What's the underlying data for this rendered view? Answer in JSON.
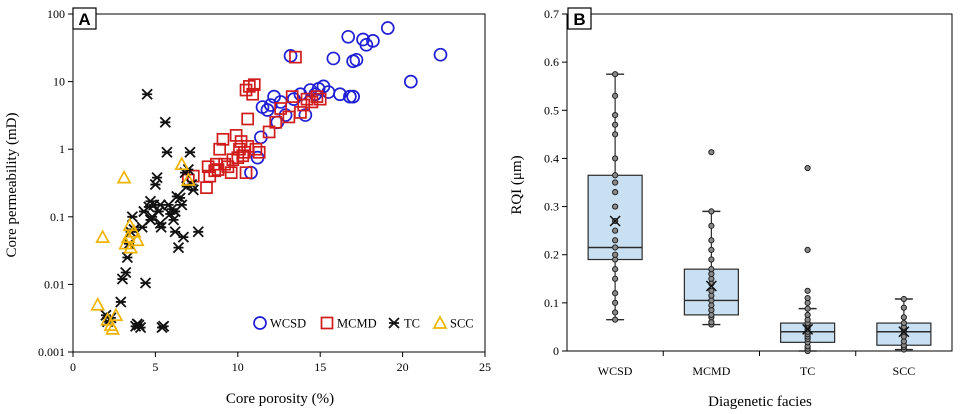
{
  "colors": {
    "WCSD": "#1f1fd6",
    "MCMD": "#d11c1c",
    "TC": "#111111",
    "SCC": "#f0b400",
    "box_fill": "#c9e0f2",
    "box_stroke": "#2b2b2b",
    "point_fill": "#8a8a8a"
  },
  "chart_data": [
    {
      "panel": "A",
      "type": "scatter",
      "title": "",
      "xlabel": "Core porosity (%)",
      "ylabel": "Core permeability (mD)",
      "xlim": [
        0,
        25
      ],
      "ylim": [
        0.001,
        100
      ],
      "yscale": "log",
      "x_ticks": [
        0,
        5,
        10,
        15,
        20,
        25
      ],
      "x_tick_labels": [
        "0",
        "5",
        "10",
        "15",
        "20",
        "25"
      ],
      "y_ticks": [
        0.001,
        0.01,
        0.1,
        1,
        10,
        100
      ],
      "y_tick_labels": [
        "0.001",
        "0.01",
        "0.1",
        "1",
        "10",
        "100"
      ],
      "legend_position": "bottom-right",
      "series": [
        {
          "name": "WCSD",
          "marker": "circle",
          "points": [
            [
              10.8,
              0.45
            ],
            [
              11.2,
              0.75
            ],
            [
              11.4,
              1.5
            ],
            [
              11.5,
              4.2
            ],
            [
              12.0,
              4.5
            ],
            [
              12.2,
              6.0
            ],
            [
              12.6,
              5.0
            ],
            [
              12.9,
              3.2
            ],
            [
              13.2,
              24
            ],
            [
              13.8,
              6.5
            ],
            [
              14.1,
              3.2
            ],
            [
              14.4,
              7.5
            ],
            [
              14.9,
              7.8
            ],
            [
              15.2,
              8.5
            ],
            [
              15.5,
              7.0
            ],
            [
              15.8,
              22
            ],
            [
              16.2,
              6.5
            ],
            [
              16.8,
              6.0
            ],
            [
              17.0,
              6.0
            ],
            [
              16.7,
              46
            ],
            [
              17.0,
              20
            ],
            [
              17.2,
              21
            ],
            [
              17.6,
              42
            ],
            [
              17.8,
              35
            ],
            [
              18.2,
              40
            ],
            [
              19.1,
              62
            ],
            [
              20.5,
              10
            ],
            [
              22.3,
              25
            ],
            [
              13.4,
              5.5
            ],
            [
              14.7,
              6.5
            ],
            [
              12.4,
              2.5
            ],
            [
              11.8,
              3.8
            ]
          ]
        },
        {
          "name": "MCMD",
          "marker": "square",
          "points": [
            [
              7.0,
              0.35
            ],
            [
              7.3,
              0.4
            ],
            [
              8.1,
              0.27
            ],
            [
              8.2,
              0.55
            ],
            [
              8.3,
              0.4
            ],
            [
              8.6,
              0.48
            ],
            [
              8.7,
              0.6
            ],
            [
              8.8,
              0.5
            ],
            [
              8.9,
              1.0
            ],
            [
              9.1,
              1.4
            ],
            [
              9.2,
              0.6
            ],
            [
              9.4,
              0.55
            ],
            [
              9.6,
              0.45
            ],
            [
              9.7,
              0.7
            ],
            [
              9.9,
              1.6
            ],
            [
              10.0,
              0.75
            ],
            [
              10.1,
              1.0
            ],
            [
              10.2,
              1.3
            ],
            [
              10.3,
              0.8
            ],
            [
              10.4,
              0.9
            ],
            [
              10.5,
              0.45
            ],
            [
              10.6,
              1.1
            ],
            [
              10.5,
              7.5
            ],
            [
              10.7,
              8.5
            ],
            [
              10.6,
              2.8
            ],
            [
              10.9,
              6.5
            ],
            [
              11.0,
              9.0
            ],
            [
              11.1,
              1.0
            ],
            [
              11.3,
              0.9
            ],
            [
              11.9,
              1.8
            ],
            [
              12.3,
              2.5
            ],
            [
              12.6,
              4.0
            ],
            [
              13.1,
              3.0
            ],
            [
              13.3,
              6.0
            ],
            [
              13.5,
              23
            ],
            [
              13.8,
              3.5
            ],
            [
              14.0,
              4.5
            ],
            [
              14.2,
              5.5
            ],
            [
              14.5,
              5.0
            ],
            [
              14.8,
              6.0
            ],
            [
              15.0,
              5.5
            ]
          ]
        },
        {
          "name": "TC",
          "marker": "star",
          "points": [
            [
              2.0,
              0.0035
            ],
            [
              2.1,
              0.0028
            ],
            [
              2.3,
              0.0032
            ],
            [
              2.9,
              0.0055
            ],
            [
              3.0,
              0.012
            ],
            [
              3.2,
              0.015
            ],
            [
              3.3,
              0.025
            ],
            [
              3.4,
              0.04
            ],
            [
              3.5,
              0.06
            ],
            [
              3.6,
              0.1
            ],
            [
              3.7,
              0.065
            ],
            [
              3.8,
              0.0024
            ],
            [
              3.9,
              0.0026
            ],
            [
              4.0,
              0.0025
            ],
            [
              4.1,
              0.0023
            ],
            [
              4.2,
              0.07
            ],
            [
              4.3,
              0.12
            ],
            [
              4.4,
              0.0105
            ],
            [
              4.5,
              6.5
            ],
            [
              4.6,
              0.14
            ],
            [
              4.7,
              0.17
            ],
            [
              4.8,
              0.1
            ],
            [
              4.9,
              0.15
            ],
            [
              5.0,
              0.3
            ],
            [
              5.1,
              0.38
            ],
            [
              5.2,
              0.12
            ],
            [
              5.3,
              0.08
            ],
            [
              5.35,
              0.07
            ],
            [
              5.4,
              0.0023
            ],
            [
              5.5,
              0.0024
            ],
            [
              5.6,
              2.5
            ],
            [
              5.7,
              0.9
            ],
            [
              5.8,
              0.15
            ],
            [
              5.9,
              0.11
            ],
            [
              6.0,
              0.13
            ],
            [
              6.1,
              0.09
            ],
            [
              6.2,
              0.12
            ],
            [
              6.3,
              0.2
            ],
            [
              6.4,
              0.035
            ],
            [
              6.5,
              0.19
            ],
            [
              6.6,
              0.15
            ],
            [
              6.7,
              0.05
            ],
            [
              6.8,
              0.45
            ],
            [
              6.9,
              0.28
            ],
            [
              7.0,
              0.5
            ],
            [
              7.1,
              0.9
            ],
            [
              7.2,
              0.3
            ],
            [
              7.3,
              0.25
            ],
            [
              7.6,
              0.06
            ],
            [
              5.3,
              0.15
            ],
            [
              6.2,
              0.06
            ],
            [
              4.7,
              0.09
            ]
          ]
        },
        {
          "name": "SCC",
          "marker": "triangle",
          "points": [
            [
              1.5,
              0.005
            ],
            [
              1.8,
              0.05
            ],
            [
              2.1,
              0.003
            ],
            [
              2.3,
              0.0025
            ],
            [
              2.4,
              0.0022
            ],
            [
              2.6,
              0.0035
            ],
            [
              3.1,
              0.38
            ],
            [
              3.2,
              0.04
            ],
            [
              3.35,
              0.05
            ],
            [
              3.45,
              0.075
            ],
            [
              3.5,
              0.035
            ],
            [
              3.7,
              0.06
            ],
            [
              3.9,
              0.045
            ],
            [
              6.6,
              0.6
            ],
            [
              7.0,
              0.35
            ]
          ]
        }
      ]
    },
    {
      "panel": "B",
      "type": "box",
      "title": "",
      "xlabel": "Diagenetic facies",
      "ylabel": "RQI (μm)",
      "ylim": [
        0,
        0.7
      ],
      "y_ticks": [
        0,
        0.1,
        0.2,
        0.3,
        0.4,
        0.5,
        0.6,
        0.7
      ],
      "y_tick_labels": [
        "0",
        "0.1",
        "0.2",
        "0.3",
        "0.4",
        "0.5",
        "0.6",
        "0.7"
      ],
      "categories": [
        "WCSD",
        "MCMD",
        "TC",
        "SCC"
      ],
      "boxes": [
        {
          "name": "WCSD",
          "min": 0.065,
          "q1": 0.19,
          "median": 0.215,
          "q3": 0.365,
          "max": 0.575,
          "mean": 0.27,
          "outliers": [],
          "points": [
            0.065,
            0.08,
            0.1,
            0.12,
            0.15,
            0.17,
            0.19,
            0.2,
            0.215,
            0.23,
            0.25,
            0.27,
            0.3,
            0.33,
            0.35,
            0.365,
            0.4,
            0.45,
            0.47,
            0.49,
            0.53,
            0.575
          ]
        },
        {
          "name": "MCMD",
          "min": 0.055,
          "q1": 0.075,
          "median": 0.105,
          "q3": 0.17,
          "max": 0.29,
          "mean": 0.135,
          "outliers": [
            0.413
          ],
          "points": [
            0.055,
            0.06,
            0.07,
            0.075,
            0.085,
            0.095,
            0.105,
            0.115,
            0.125,
            0.14,
            0.15,
            0.16,
            0.17,
            0.19,
            0.21,
            0.23,
            0.26,
            0.29,
            0.413
          ]
        },
        {
          "name": "TC",
          "min": 0.0,
          "q1": 0.018,
          "median": 0.04,
          "q3": 0.058,
          "max": 0.088,
          "mean": 0.045,
          "outliers": [
            0.1,
            0.11,
            0.125,
            0.21,
            0.38
          ],
          "points": [
            0.0,
            0.005,
            0.01,
            0.018,
            0.025,
            0.03,
            0.035,
            0.04,
            0.045,
            0.05,
            0.055,
            0.058,
            0.065,
            0.075,
            0.088,
            0.1,
            0.11,
            0.125,
            0.21,
            0.38
          ]
        },
        {
          "name": "SCC",
          "min": 0.003,
          "q1": 0.012,
          "median": 0.04,
          "q3": 0.058,
          "max": 0.108,
          "mean": 0.04,
          "outliers": [],
          "points": [
            0.003,
            0.008,
            0.012,
            0.02,
            0.03,
            0.04,
            0.045,
            0.05,
            0.058,
            0.07,
            0.09,
            0.108
          ]
        }
      ]
    }
  ]
}
